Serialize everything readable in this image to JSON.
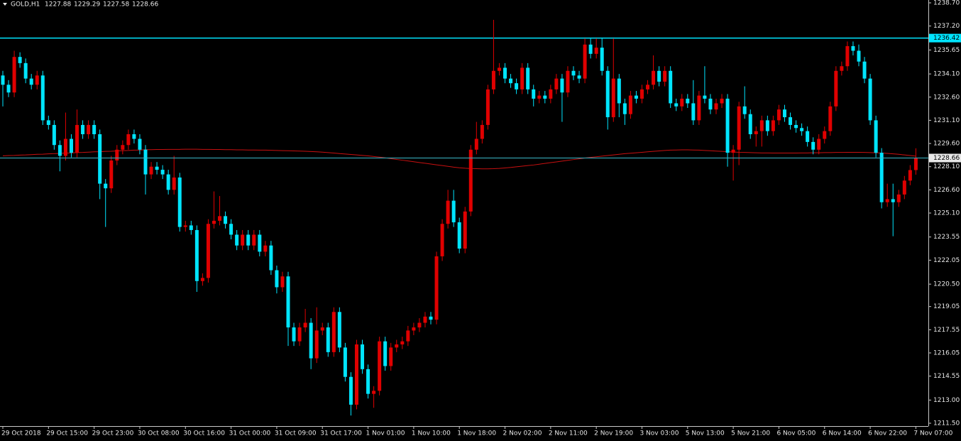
{
  "chart_data": {
    "type": "candlestick",
    "symbol": "GOLD,H1",
    "background": "#000000",
    "up_color": "#e00000",
    "down_color": "#00e5ff",
    "grid": false,
    "categories": [
      "29 Oct 2018",
      null,
      null,
      null,
      null,
      null,
      null,
      null,
      "29 Oct 15:00",
      null,
      null,
      null,
      null,
      null,
      null,
      null,
      "29 Oct 23:00",
      null,
      null,
      null,
      null,
      null,
      null,
      null,
      "30 Oct 08:00",
      null,
      null,
      null,
      null,
      null,
      null,
      null,
      "30 Oct 16:00",
      null,
      null,
      null,
      null,
      null,
      null,
      null,
      "31 Oct 00:00",
      null,
      null,
      null,
      null,
      null,
      null,
      null,
      "31 Oct 09:00",
      null,
      null,
      null,
      null,
      null,
      null,
      null,
      "31 Oct 17:00",
      null,
      null,
      null,
      null,
      null,
      null,
      null,
      "1 Nov 01:00",
      null,
      null,
      null,
      null,
      null,
      null,
      null,
      "1 Nov 10:00",
      null,
      null,
      null,
      null,
      null,
      null,
      null,
      "1 Nov 18:00",
      null,
      null,
      null,
      null,
      null,
      null,
      null,
      "2 Nov 02:00",
      null,
      null,
      null,
      null,
      null,
      null,
      null,
      "2 Nov 11:00",
      null,
      null,
      null,
      null,
      null,
      null,
      null,
      "2 Nov 19:00",
      null,
      null,
      null,
      null,
      null,
      null,
      null,
      "3 Nov 03:00",
      null,
      null,
      null,
      null,
      null,
      null,
      null,
      "5 Nov 13:00",
      null,
      null,
      null,
      null,
      null,
      null,
      null,
      "5 Nov 21:00",
      null,
      null,
      null,
      null,
      null,
      null,
      null,
      "6 Nov 05:00",
      null,
      null,
      null,
      null,
      null,
      null,
      null,
      "6 Nov 14:00",
      null,
      null,
      null,
      null,
      null,
      null,
      null,
      "6 Nov 22:00",
      null,
      null,
      null,
      null,
      null,
      null,
      null,
      "7 Nov 07:00"
    ],
    "open": [
      1234.0,
      1233.4,
      1232.9,
      1235.2,
      1234.8,
      1233.8,
      1233.4,
      1234.0,
      1231.1,
      1230.8,
      1229.5,
      1228.8,
      1229.9,
      1229.0,
      1230.8,
      1230.2,
      1230.8,
      1230.2,
      1227.0,
      1226.7,
      1228.5,
      1229.2,
      1229.5,
      1230.2,
      1229.9,
      1229.2,
      1227.6,
      1228.1,
      1227.9,
      1227.6,
      1226.6,
      1227.4,
      1224.2,
      1224.3,
      1224.0,
      1220.7,
      1220.9,
      1224.4,
      1224.6,
      1224.9,
      1224.4,
      1223.7,
      1223.0,
      1223.7,
      1223.0,
      1223.7,
      1222.6,
      1223.0,
      1221.4,
      1220.3,
      1221.0,
      1217.7,
      1216.8,
      1217.7,
      1218.0,
      1215.7,
      1217.5,
      1217.7,
      1216.1,
      1218.7,
      1216.4,
      1214.5,
      1212.7,
      1216.6,
      1215.0,
      1213.4,
      1213.6,
      1216.8,
      1215.2,
      1216.4,
      1216.6,
      1216.8,
      1217.5,
      1217.7,
      1218.0,
      1218.4,
      1218.2,
      1222.3,
      1224.4,
      1225.9,
      1224.5,
      1222.8,
      1225.2,
      1229.2,
      1229.9,
      1230.8,
      1233.1,
      1234.3,
      1234.5,
      1233.8,
      1233.5,
      1233.1,
      1234.5,
      1233.1,
      1232.5,
      1232.7,
      1232.5,
      1233.1,
      1233.8,
      1232.9,
      1234.3,
      1234.0,
      1233.8,
      1236.0,
      1235.4,
      1235.8,
      1234.3,
      1231.3,
      1233.8,
      1232.2,
      1231.5,
      1232.7,
      1232.5,
      1233.1,
      1233.4,
      1234.3,
      1233.6,
      1234.3,
      1232.2,
      1232.0,
      1232.5,
      1232.2,
      1231.1,
      1232.7,
      1232.5,
      1231.8,
      1232.2,
      1232.5,
      1229.0,
      1229.2,
      1232.0,
      1231.5,
      1230.2,
      1230.4,
      1231.1,
      1230.4,
      1231.1,
      1231.8,
      1231.3,
      1230.8,
      1230.6,
      1230.4,
      1229.7,
      1229.2,
      1229.9,
      1230.4,
      1232.0,
      1234.3,
      1234.6,
      1235.9,
      1235.6,
      1234.9,
      1233.8,
      1231.1,
      1229.0,
      1225.8,
      1226.0,
      1225.8,
      1226.3,
      1227.2,
      1227.88
    ],
    "high": [
      1234.3,
      1233.7,
      1235.6,
      1235.5,
      1235.1,
      1234.1,
      1234.3,
      1234.3,
      1231.4,
      1231.1,
      1229.8,
      1231.6,
      1230.2,
      1231.8,
      1231.1,
      1231.1,
      1231.1,
      1230.5,
      1227.3,
      1228.8,
      1229.5,
      1229.8,
      1230.5,
      1230.5,
      1230.2,
      1229.5,
      1228.4,
      1228.4,
      1228.2,
      1227.9,
      1228.8,
      1227.7,
      1224.6,
      1224.6,
      1224.3,
      1221.2,
      1224.7,
      1226.5,
      1226.2,
      1225.2,
      1224.7,
      1224.0,
      1224.0,
      1224.0,
      1224.0,
      1224.0,
      1223.3,
      1223.3,
      1221.7,
      1221.3,
      1221.3,
      1218.0,
      1218.0,
      1218.9,
      1218.3,
      1219.0,
      1218.0,
      1218.0,
      1219.0,
      1219.0,
      1216.7,
      1214.8,
      1216.9,
      1216.9,
      1215.3,
      1213.9,
      1217.1,
      1217.1,
      1216.7,
      1216.9,
      1217.1,
      1217.8,
      1218.0,
      1218.3,
      1218.7,
      1218.7,
      1222.6,
      1224.7,
      1226.6,
      1226.6,
      1224.8,
      1225.5,
      1229.5,
      1231.0,
      1231.1,
      1233.4,
      1237.6,
      1234.8,
      1234.8,
      1234.1,
      1233.8,
      1234.8,
      1234.8,
      1233.4,
      1233.0,
      1233.0,
      1233.4,
      1234.1,
      1234.1,
      1234.6,
      1234.6,
      1234.3,
      1236.4,
      1236.4,
      1236.4,
      1236.4,
      1234.6,
      1236.4,
      1234.1,
      1232.5,
      1233.0,
      1233.0,
      1233.4,
      1233.7,
      1235.3,
      1234.6,
      1234.6,
      1234.6,
      1232.5,
      1232.8,
      1232.8,
      1233.7,
      1233.0,
      1234.6,
      1232.8,
      1232.5,
      1232.8,
      1232.8,
      1229.5,
      1232.3,
      1233.3,
      1231.8,
      1230.7,
      1231.4,
      1231.4,
      1231.4,
      1232.1,
      1232.1,
      1231.6,
      1231.1,
      1230.9,
      1230.7,
      1230.0,
      1230.2,
      1230.7,
      1232.3,
      1234.6,
      1234.9,
      1236.2,
      1236.2,
      1236.0,
      1235.2,
      1234.1,
      1231.4,
      1229.3,
      1227.0,
      1227.0,
      1226.6,
      1227.5,
      1228.2,
      1229.29
    ],
    "low": [
      1232.0,
      1232.6,
      1232.6,
      1234.5,
      1233.5,
      1233.1,
      1233.1,
      1230.8,
      1230.5,
      1229.2,
      1227.8,
      1228.5,
      1228.7,
      1228.7,
      1229.9,
      1229.9,
      1229.9,
      1226.0,
      1224.2,
      1226.4,
      1228.2,
      1228.9,
      1229.2,
      1229.6,
      1228.9,
      1226.3,
      1227.3,
      1227.6,
      1227.3,
      1226.3,
      1226.3,
      1223.9,
      1223.9,
      1223.7,
      1220.0,
      1220.4,
      1220.6,
      1224.1,
      1224.3,
      1224.1,
      1223.4,
      1222.7,
      1222.7,
      1222.7,
      1222.7,
      1222.3,
      1222.3,
      1221.1,
      1219.9,
      1220.0,
      1216.5,
      1216.5,
      1216.5,
      1217.4,
      1215.0,
      1215.4,
      1217.2,
      1215.8,
      1215.8,
      1216.1,
      1214.2,
      1212.0,
      1212.4,
      1214.7,
      1213.1,
      1212.5,
      1213.3,
      1214.9,
      1214.9,
      1216.1,
      1216.3,
      1216.5,
      1217.2,
      1217.4,
      1217.7,
      1217.9,
      1217.9,
      1222.0,
      1224.1,
      1224.2,
      1222.5,
      1222.5,
      1224.9,
      1228.9,
      1229.6,
      1230.5,
      1232.8,
      1234.0,
      1233.5,
      1233.2,
      1232.8,
      1232.8,
      1232.8,
      1232.0,
      1232.2,
      1232.2,
      1232.2,
      1232.8,
      1231.0,
      1232.6,
      1233.7,
      1233.5,
      1233.5,
      1235.1,
      1235.1,
      1234.0,
      1230.5,
      1231.0,
      1231.3,
      1230.8,
      1231.2,
      1232.2,
      1232.2,
      1232.8,
      1233.1,
      1233.3,
      1233.3,
      1231.9,
      1231.7,
      1231.7,
      1231.9,
      1230.8,
      1230.8,
      1232.2,
      1231.5,
      1231.5,
      1231.9,
      1228.1,
      1227.2,
      1228.2,
      1231.2,
      1229.9,
      1229.4,
      1229.4,
      1230.1,
      1230.1,
      1230.8,
      1231.0,
      1230.5,
      1230.3,
      1230.1,
      1229.4,
      1228.9,
      1228.9,
      1229.6,
      1230.1,
      1231.7,
      1234.0,
      1234.3,
      1235.3,
      1234.6,
      1233.5,
      1230.8,
      1228.7,
      1225.4,
      1225.5,
      1223.6,
      1225.5,
      1226.0,
      1226.9,
      1227.58
    ],
    "close": [
      1233.4,
      1232.9,
      1235.2,
      1234.8,
      1233.8,
      1233.4,
      1234.0,
      1231.1,
      1230.8,
      1229.5,
      1228.8,
      1229.9,
      1229.0,
      1230.8,
      1230.2,
      1230.8,
      1230.2,
      1227.0,
      1226.7,
      1228.5,
      1229.2,
      1229.5,
      1230.2,
      1229.9,
      1229.2,
      1227.6,
      1228.1,
      1227.9,
      1227.6,
      1226.6,
      1227.4,
      1224.2,
      1224.3,
      1224.0,
      1220.7,
      1220.9,
      1224.4,
      1224.6,
      1224.9,
      1224.4,
      1223.7,
      1223.0,
      1223.7,
      1223.0,
      1223.7,
      1222.6,
      1223.0,
      1221.4,
      1220.3,
      1221.0,
      1217.7,
      1216.8,
      1217.7,
      1218.0,
      1215.7,
      1217.5,
      1217.7,
      1216.1,
      1218.7,
      1216.4,
      1214.5,
      1212.7,
      1216.6,
      1215.0,
      1213.4,
      1213.6,
      1216.8,
      1215.2,
      1216.4,
      1216.6,
      1216.8,
      1217.5,
      1217.7,
      1218.0,
      1218.4,
      1218.2,
      1222.3,
      1224.4,
      1225.9,
      1224.5,
      1222.8,
      1225.2,
      1229.2,
      1229.9,
      1230.8,
      1233.1,
      1234.3,
      1234.5,
      1233.8,
      1233.5,
      1233.1,
      1234.5,
      1233.1,
      1232.5,
      1232.7,
      1232.5,
      1233.1,
      1233.8,
      1232.9,
      1234.3,
      1234.0,
      1233.8,
      1236.0,
      1235.4,
      1235.8,
      1234.3,
      1231.3,
      1233.8,
      1232.2,
      1231.5,
      1232.7,
      1232.5,
      1233.1,
      1233.4,
      1234.3,
      1233.6,
      1234.3,
      1232.2,
      1232.0,
      1232.5,
      1232.2,
      1231.1,
      1232.7,
      1232.5,
      1231.8,
      1232.2,
      1232.5,
      1229.0,
      1229.2,
      1232.0,
      1231.5,
      1230.2,
      1230.4,
      1231.1,
      1230.4,
      1231.1,
      1231.8,
      1231.3,
      1230.8,
      1230.6,
      1230.4,
      1229.7,
      1229.2,
      1229.9,
      1230.4,
      1232.0,
      1234.3,
      1234.6,
      1235.9,
      1235.6,
      1234.9,
      1233.8,
      1231.1,
      1229.0,
      1225.8,
      1226.0,
      1225.8,
      1226.3,
      1227.2,
      1227.88,
      1228.66
    ],
    "moving_average": {
      "color": "#c81010",
      "values": [
        1228.8,
        1228.82,
        1228.83,
        1228.85,
        1228.86,
        1228.88,
        1228.9,
        1228.91,
        1228.93,
        1228.94,
        1228.96,
        1228.98,
        1228.99,
        1229.01,
        1229.02,
        1229.04,
        1229.06,
        1229.07,
        1229.09,
        1229.1,
        1229.12,
        1229.14,
        1229.15,
        1229.17,
        1229.18,
        1229.2,
        1229.2,
        1229.21,
        1229.21,
        1229.22,
        1229.22,
        1229.22,
        1229.23,
        1229.23,
        1229.23,
        1229.22,
        1229.22,
        1229.21,
        1229.21,
        1229.2,
        1229.2,
        1229.19,
        1229.19,
        1229.18,
        1229.18,
        1229.17,
        1229.17,
        1229.16,
        1229.15,
        1229.14,
        1229.13,
        1229.12,
        1229.11,
        1229.1,
        1229.08,
        1229.06,
        1229.04,
        1229.01,
        1228.98,
        1228.95,
        1228.92,
        1228.89,
        1228.86,
        1228.83,
        1228.8,
        1228.76,
        1228.72,
        1228.67,
        1228.62,
        1228.57,
        1228.52,
        1228.47,
        1228.42,
        1228.37,
        1228.32,
        1228.27,
        1228.22,
        1228.17,
        1228.12,
        1228.07,
        1228.03,
        1228.0,
        1227.98,
        1227.97,
        1227.96,
        1227.96,
        1227.97,
        1227.99,
        1228.02,
        1228.05,
        1228.09,
        1228.13,
        1228.17,
        1228.21,
        1228.26,
        1228.31,
        1228.36,
        1228.41,
        1228.46,
        1228.51,
        1228.56,
        1228.61,
        1228.66,
        1228.7,
        1228.74,
        1228.78,
        1228.82,
        1228.86,
        1228.9,
        1228.94,
        1228.97,
        1229.0,
        1229.03,
        1229.06,
        1229.09,
        1229.12,
        1229.15,
        1229.17,
        1229.18,
        1229.19,
        1229.19,
        1229.18,
        1229.17,
        1229.15,
        1229.13,
        1229.11,
        1229.09,
        1229.07,
        1229.05,
        1229.03,
        1229.02,
        1229.01,
        1229.0,
        1228.99,
        1228.99,
        1228.98,
        1228.98,
        1228.98,
        1228.98,
        1228.98,
        1228.99,
        1228.99,
        1229.0,
        1229.0,
        1229.01,
        1229.01,
        1229.02,
        1229.02,
        1229.03,
        1229.03,
        1229.03,
        1229.02,
        1229.01,
        1229.0,
        1228.98,
        1228.96,
        1228.93,
        1228.9,
        1228.86,
        1228.82,
        1228.78
      ]
    },
    "hlines": [
      {
        "value": 1236.42,
        "color": "#00e5ff"
      }
    ],
    "price_line_color": "#3bb8c8",
    "ylim": [
      1211.5,
      1238.7
    ],
    "yticks": [
      {
        "value": 1238.7,
        "label": "1238.70"
      },
      {
        "value": 1237.2,
        "label": "1237.20"
      },
      1235.65,
      {
        "value": 1234.1,
        "label": "1234.10"
      },
      {
        "value": 1232.6,
        "label": "1232.60"
      },
      {
        "value": 1231.1,
        "label": "1231.10"
      },
      {
        "value": 1229.6,
        "label": "1229.60"
      },
      {
        "value": 1228.1,
        "label": "1228.10"
      },
      {
        "value": 1226.6,
        "label": "1226.60"
      },
      {
        "value": 1225.1,
        "label": "1225.10"
      },
      1223.55,
      1222.05,
      {
        "value": 1220.5,
        "label": "1220.50"
      },
      1219.05,
      1217.55,
      1216.05,
      1214.55,
      {
        "value": 1213.0,
        "label": "1213.00"
      },
      {
        "value": 1211.5,
        "label": "1211.50"
      }
    ]
  }
}
